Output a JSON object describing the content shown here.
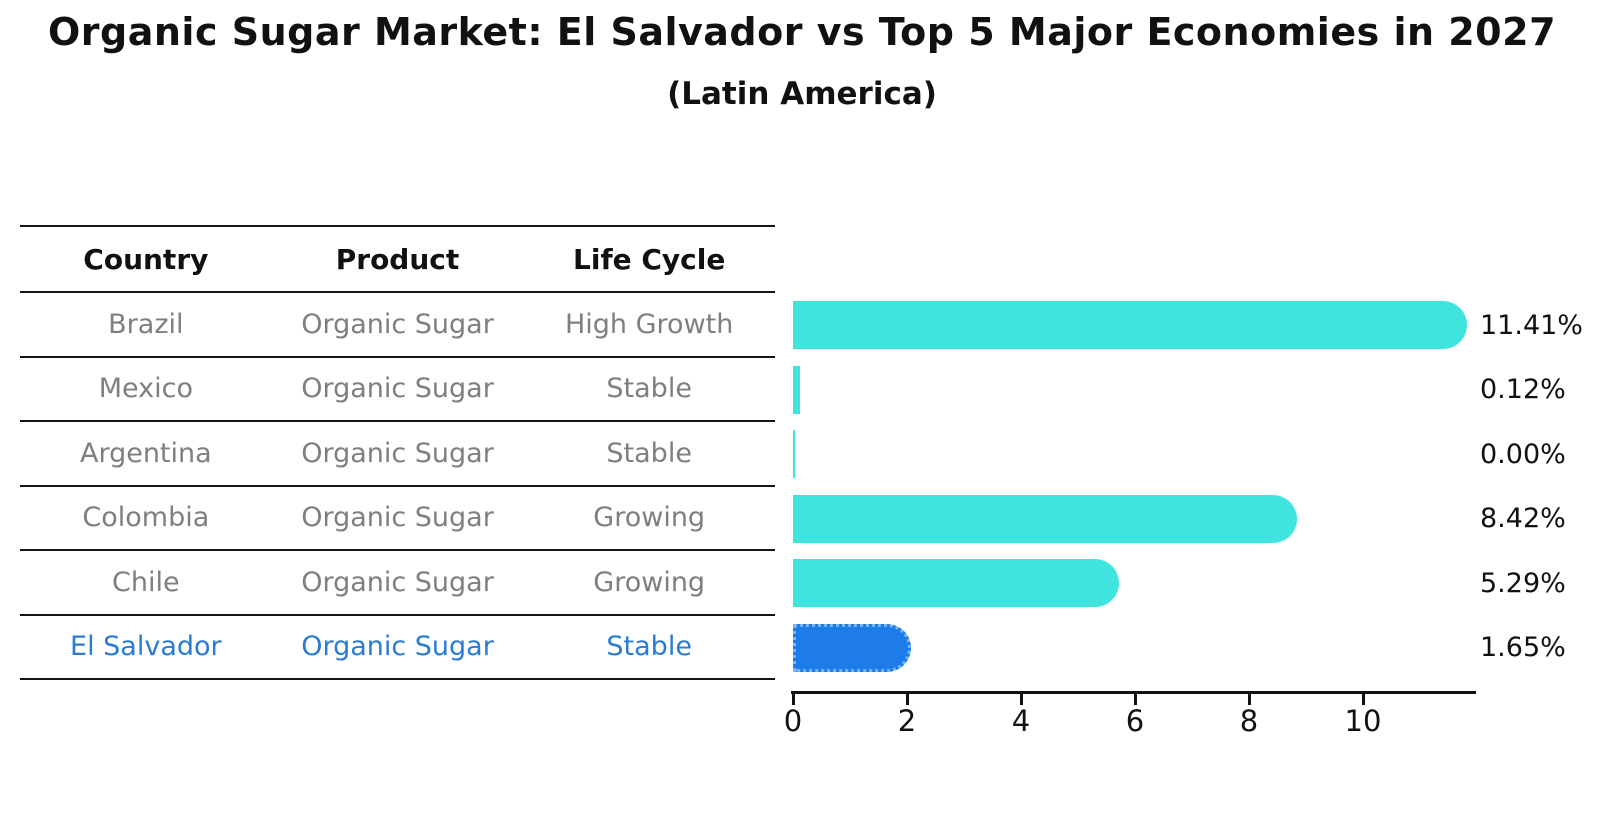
{
  "title": "Organic Sugar Market: El Salvador vs Top 5 Major Economies in 2027",
  "subtitle": "(Latin America)",
  "table": {
    "headers": [
      "Country",
      "Product",
      "Life Cycle"
    ],
    "rows": [
      {
        "country": "Brazil",
        "product": "Organic Sugar",
        "life_cycle": "High Growth",
        "highlighted": false
      },
      {
        "country": "Mexico",
        "product": "Organic Sugar",
        "life_cycle": "Stable",
        "highlighted": false
      },
      {
        "country": "Argentina",
        "product": "Organic Sugar",
        "life_cycle": "Stable",
        "highlighted": false
      },
      {
        "country": "Colombia",
        "product": "Organic Sugar",
        "life_cycle": "Growing",
        "highlighted": false
      },
      {
        "country": "Chile",
        "product": "Organic Sugar",
        "life_cycle": "Growing",
        "highlighted": false
      },
      {
        "country": "El Salvador",
        "product": "Organic Sugar",
        "life_cycle": "Stable",
        "highlighted": true
      }
    ]
  },
  "chart_data": {
    "type": "bar",
    "orientation": "horizontal",
    "title": "Organic Sugar Market: El Salvador vs Top 5 Major Economies in 2027",
    "subtitle": "(Latin America)",
    "categories": [
      "Brazil",
      "Mexico",
      "Argentina",
      "Colombia",
      "Chile",
      "El Salvador"
    ],
    "values": [
      11.41,
      0.12,
      0.0,
      8.42,
      5.29,
      1.65
    ],
    "value_labels": [
      "11.41%",
      "0.12%",
      "0.00%",
      "8.42%",
      "5.29%",
      "1.65%"
    ],
    "x_ticks": [
      "0",
      "2",
      "4",
      "6",
      "8",
      "10"
    ],
    "x_tick_values": [
      0,
      2,
      4,
      6,
      8,
      10
    ],
    "xlim": [
      0,
      12
    ],
    "grid": false,
    "legend": false,
    "highlight_index": 5,
    "bar_color": "#40E4DE",
    "highlight_bar_color": "#1E7CE8",
    "highlight_border_color": "#74B6F6",
    "highlight_text_color": "#2A7BD4"
  }
}
